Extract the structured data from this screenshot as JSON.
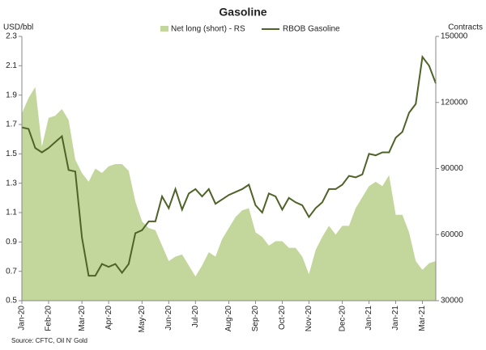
{
  "chart_data": {
    "type": "area_line",
    "title": "Gasoline",
    "y_label": "USD/bbl",
    "y2_label": "Contracts",
    "source": "Source: CFTC, Oil N' Gold",
    "categories": [
      "Jan-20",
      null,
      null,
      null,
      "Feb-20",
      null,
      null,
      null,
      null,
      "Mar-20",
      null,
      null,
      null,
      "Apr-20",
      null,
      null,
      null,
      null,
      "May-20",
      null,
      null,
      null,
      "Jun-20",
      null,
      null,
      null,
      "Jul-20",
      null,
      null,
      null,
      null,
      "Aug-20",
      null,
      null,
      null,
      "Sep-20",
      null,
      null,
      null,
      "Oct-20",
      null,
      null,
      null,
      "Nov-20",
      null,
      null,
      null,
      null,
      "Dec-20",
      null,
      null,
      null,
      "Jan-21",
      null,
      null,
      null,
      "Jan-21",
      null,
      null,
      null,
      "Mar-21",
      null,
      null
    ],
    "series": [
      {
        "name": "Net long (short) - RS",
        "color": "#c3d69b",
        "axis": "y2",
        "values": [
          115000,
          122000,
          127000,
          100000,
          113000,
          114000,
          117000,
          112000,
          94000,
          88000,
          84000,
          90000,
          88000,
          91000,
          92000,
          92000,
          89000,
          75000,
          66000,
          63000,
          62000,
          55000,
          48000,
          50000,
          51000,
          46000,
          41000,
          46000,
          52000,
          50000,
          58000,
          63000,
          68000,
          71000,
          72000,
          61000,
          59000,
          55000,
          57000,
          57000,
          54000,
          54000,
          50000,
          42000,
          53000,
          59000,
          64000,
          60000,
          64000,
          64000,
          72000,
          77000,
          82000,
          84000,
          82000,
          87000,
          69000,
          69000,
          61000,
          48000,
          44000,
          47000,
          48000
        ]
      },
      {
        "name": "RBOB Gasoline",
        "color": "#4f6228",
        "values": [
          1.68,
          1.67,
          1.54,
          1.51,
          1.54,
          1.58,
          1.62,
          1.39,
          1.38,
          0.93,
          0.67,
          0.67,
          0.75,
          0.73,
          0.75,
          0.69,
          0.75,
          0.96,
          0.98,
          1.04,
          1.04,
          1.21,
          1.13,
          1.26,
          1.12,
          1.23,
          1.26,
          1.21,
          1.26,
          1.16,
          1.19,
          1.22,
          1.24,
          1.26,
          1.29,
          1.15,
          1.1,
          1.23,
          1.21,
          1.12,
          1.2,
          1.17,
          1.15,
          1.07,
          1.13,
          1.17,
          1.26,
          1.26,
          1.29,
          1.35,
          1.34,
          1.36,
          1.5,
          1.49,
          1.51,
          1.51,
          1.61,
          1.65,
          1.78,
          1.84,
          2.16,
          2.1,
          1.98
        ]
      }
    ],
    "ylim": [
      0.5,
      2.3
    ],
    "yticks": [
      0.5,
      0.7,
      0.9,
      1.1,
      1.3,
      1.5,
      1.7,
      1.9,
      2.1,
      2.3
    ],
    "y2lim": [
      30000,
      150000
    ],
    "y2ticks": [
      30000,
      60000,
      90000,
      120000,
      150000
    ]
  }
}
